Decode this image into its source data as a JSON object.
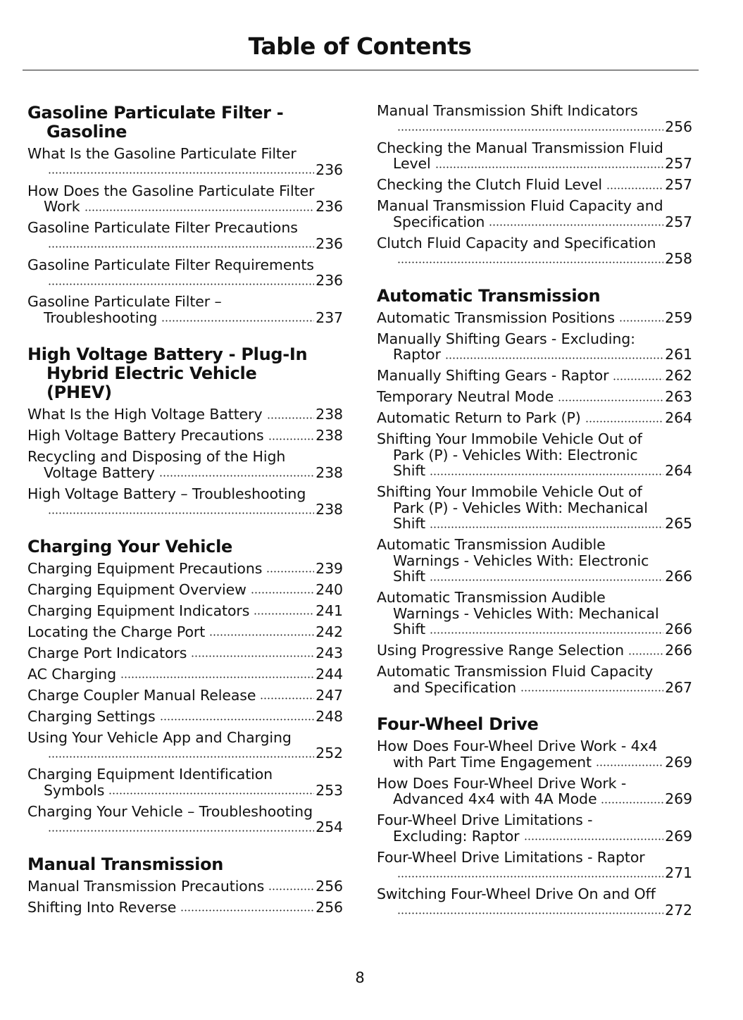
{
  "title": "Table of Contents",
  "page_number": "8",
  "left_column": [
    {
      "heading": [
        "Gasoline Particulate Filter -",
        "Gasoline"
      ],
      "entries": [
        {
          "lines": [
            "What Is the Gasoline Particulate Filter",
            ""
          ],
          "page": "236"
        },
        {
          "lines": [
            "How Does the Gasoline Particulate Filter",
            "Work"
          ],
          "page": "236"
        },
        {
          "lines": [
            "Gasoline Particulate Filter Precautions",
            ""
          ],
          "page": "236"
        },
        {
          "lines": [
            "Gasoline Particulate Filter Requirements",
            ""
          ],
          "page": "236"
        },
        {
          "lines": [
            "Gasoline Particulate Filter –",
            "Troubleshooting"
          ],
          "page": "237"
        }
      ]
    },
    {
      "heading": [
        "High Voltage Battery - Plug-In",
        "Hybrid Electric Vehicle",
        "(PHEV)"
      ],
      "entries": [
        {
          "lines": [
            "What Is the High Voltage Battery"
          ],
          "page": "238"
        },
        {
          "lines": [
            "High Voltage Battery Precautions"
          ],
          "page": "238"
        },
        {
          "lines": [
            "Recycling and Disposing of the High",
            "Voltage Battery"
          ],
          "page": "238"
        },
        {
          "lines": [
            "High Voltage Battery – Troubleshooting",
            ""
          ],
          "page": "238"
        }
      ]
    },
    {
      "heading": [
        "Charging Your Vehicle"
      ],
      "entries": [
        {
          "lines": [
            "Charging Equipment Precautions"
          ],
          "page": "239"
        },
        {
          "lines": [
            "Charging Equipment Overview"
          ],
          "page": "240"
        },
        {
          "lines": [
            "Charging Equipment Indicators"
          ],
          "page": "241"
        },
        {
          "lines": [
            "Locating the Charge Port"
          ],
          "page": "242"
        },
        {
          "lines": [
            "Charge Port Indicators"
          ],
          "page": "243"
        },
        {
          "lines": [
            "AC Charging"
          ],
          "page": "244"
        },
        {
          "lines": [
            "Charge Coupler Manual Release"
          ],
          "page": "247"
        },
        {
          "lines": [
            "Charging Settings"
          ],
          "page": "248"
        },
        {
          "lines": [
            "Using Your Vehicle App and Charging",
            ""
          ],
          "page": "252"
        },
        {
          "lines": [
            "Charging Equipment Identification",
            "Symbols"
          ],
          "page": "253"
        },
        {
          "lines": [
            "Charging Your Vehicle – Troubleshooting",
            ""
          ],
          "page": "254"
        }
      ]
    },
    {
      "heading": [
        "Manual Transmission"
      ],
      "entries": [
        {
          "lines": [
            "Manual Transmission Precautions"
          ],
          "page": "256"
        },
        {
          "lines": [
            "Shifting Into Reverse"
          ],
          "page": "256"
        }
      ]
    }
  ],
  "right_column": [
    {
      "heading": [],
      "entries": [
        {
          "lines": [
            "Manual Transmission Shift Indicators",
            ""
          ],
          "page": "256"
        },
        {
          "lines": [
            "Checking the Manual Transmission Fluid",
            "Level"
          ],
          "page": "257"
        },
        {
          "lines": [
            "Checking the Clutch Fluid Level"
          ],
          "page": "257"
        },
        {
          "lines": [
            "Manual Transmission Fluid Capacity and",
            "Specification"
          ],
          "page": "257"
        },
        {
          "lines": [
            "Clutch Fluid Capacity and Specification",
            ""
          ],
          "page": "258"
        }
      ]
    },
    {
      "heading": [
        "Automatic Transmission"
      ],
      "entries": [
        {
          "lines": [
            "Automatic Transmission Positions"
          ],
          "page": "259"
        },
        {
          "lines": [
            "Manually Shifting Gears - Excluding:",
            "Raptor"
          ],
          "page": "261"
        },
        {
          "lines": [
            "Manually Shifting Gears - Raptor"
          ],
          "page": "262"
        },
        {
          "lines": [
            "Temporary Neutral Mode"
          ],
          "page": "263"
        },
        {
          "lines": [
            "Automatic Return to Park (P)"
          ],
          "page": "264"
        },
        {
          "lines": [
            "Shifting Your Immobile Vehicle Out of",
            "Park (P) - Vehicles With: Electronic",
            "Shift"
          ],
          "page": "264"
        },
        {
          "lines": [
            "Shifting Your Immobile Vehicle Out of",
            "Park (P) - Vehicles With: Mechanical",
            "Shift"
          ],
          "page": "265"
        },
        {
          "lines": [
            "Automatic Transmission Audible",
            "Warnings - Vehicles With: Electronic",
            "Shift"
          ],
          "page": "266"
        },
        {
          "lines": [
            "Automatic Transmission Audible",
            "Warnings - Vehicles With: Mechanical",
            "Shift"
          ],
          "page": "266"
        },
        {
          "lines": [
            "Using Progressive Range Selection"
          ],
          "page": "266"
        },
        {
          "lines": [
            "Automatic Transmission Fluid Capacity",
            "and Specification"
          ],
          "page": "267"
        }
      ]
    },
    {
      "heading": [
        "Four-Wheel Drive"
      ],
      "entries": [
        {
          "lines": [
            "How Does Four-Wheel Drive Work - 4x4",
            "with Part Time Engagement"
          ],
          "page": "269"
        },
        {
          "lines": [
            "How Does Four-Wheel Drive Work -",
            "Advanced 4x4 with 4A Mode"
          ],
          "page": "269"
        },
        {
          "lines": [
            "Four-Wheel Drive Limitations -",
            "Excluding: Raptor"
          ],
          "page": "269"
        },
        {
          "lines": [
            "Four-Wheel Drive Limitations - Raptor",
            ""
          ],
          "page": "271"
        },
        {
          "lines": [
            "Switching Four-Wheel Drive On and Off",
            ""
          ],
          "page": "272"
        }
      ]
    }
  ]
}
